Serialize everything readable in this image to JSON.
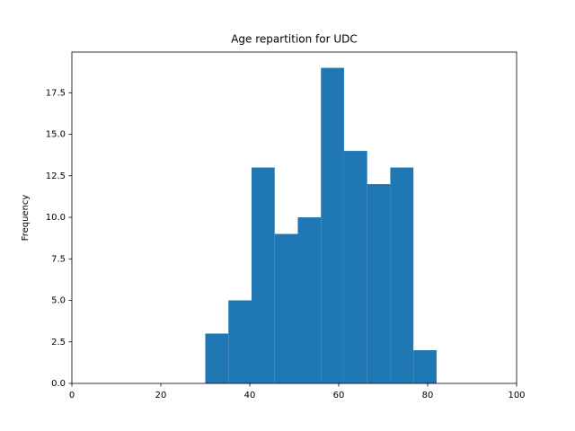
{
  "chart_data": {
    "type": "histogram",
    "title": "Age repartition for UDC",
    "ylabel": "Frequency",
    "bins": [
      30,
      35.2,
      40.4,
      45.6,
      50.8,
      56,
      61.2,
      66.4,
      71.6,
      76.8,
      82
    ],
    "values": [
      3,
      5,
      13,
      9,
      10,
      19,
      14,
      12,
      13,
      2
    ],
    "color": "#1f77b4",
    "xlim": [
      0,
      100
    ],
    "xticks": [
      0,
      20,
      40,
      60,
      80,
      100
    ],
    "ylim": [
      0,
      19.95
    ],
    "yticks": [
      {
        "value": 0,
        "label": "0.0"
      },
      2.5,
      {
        "value": 5,
        "label": "5.0"
      },
      7.5,
      {
        "value": 10,
        "label": "10.0"
      },
      12.5,
      {
        "value": 15,
        "label": "15.0"
      },
      17.5
    ],
    "grid": false
  }
}
